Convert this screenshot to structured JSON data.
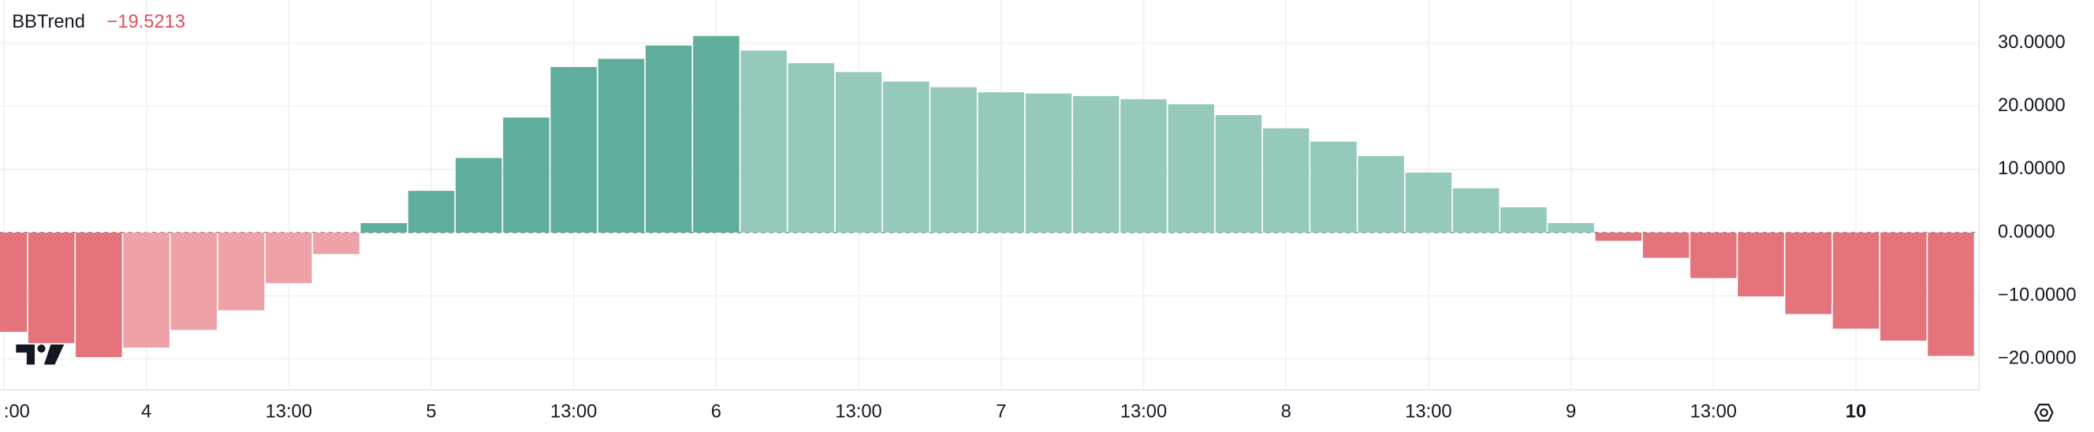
{
  "chart_data": {
    "type": "bar",
    "series_name": "BBTrend",
    "last_value_label": "−19.5213",
    "last_value_color": "#e0505b",
    "categories": [
      ":00",
      null,
      null,
      "4",
      null,
      null,
      "13:00",
      null,
      null,
      "5",
      null,
      null,
      "13:00",
      null,
      null,
      "6",
      null,
      null,
      "13:00",
      null,
      null,
      "7",
      null,
      null,
      "13:00",
      null,
      null,
      "8",
      null,
      null,
      "13:00",
      null,
      null,
      "9",
      null,
      null,
      "13:00",
      null,
      null,
      "10",
      null,
      null
    ],
    "emphasized_category": 39,
    "values": [
      -15.7,
      -17.5,
      -19.7,
      -18.2,
      -15.4,
      -12.3,
      -8.0,
      -3.4,
      1.5,
      6.6,
      11.8,
      18.2,
      26.2,
      27.5,
      29.6,
      31.1,
      28.8,
      26.8,
      25.4,
      23.9,
      23.0,
      22.2,
      22.0,
      21.6,
      21.1,
      20.3,
      18.6,
      16.5,
      14.4,
      12.1,
      9.5,
      7.0,
      4.0,
      1.5,
      -1.3,
      -4.0,
      -7.2,
      -10.1,
      -12.9,
      -15.2,
      -17.1,
      -19.5213
    ],
    "colors": [
      "#e5737b",
      "#e5737b",
      "#e5737b",
      "#eea2a7",
      "#eea2a7",
      "#eea2a7",
      "#eea2a7",
      "#eea2a7",
      "#5eae9b",
      "#5eae9b",
      "#5eae9b",
      "#5eae9b",
      "#5eae9b",
      "#5eae9b",
      "#5eae9b",
      "#5eae9b",
      "#94c9bc",
      "#94c9bc",
      "#94c9bc",
      "#94c9bc",
      "#94c9bc",
      "#94c9bc",
      "#94c9bc",
      "#94c9bc",
      "#94c9bc",
      "#94c9bc",
      "#94c9bc",
      "#94c9bc",
      "#94c9bc",
      "#94c9bc",
      "#94c9bc",
      "#94c9bc",
      "#94c9bc",
      "#94c9bc",
      "#e5737b",
      "#e5737b",
      "#e5737b",
      "#e5737b",
      "#e5737b",
      "#e5737b",
      "#e5737b",
      "#e5737b"
    ],
    "ylim": [
      -24.9,
      36.8
    ],
    "yticks": [
      {
        "value": 30,
        "label": "30.0000"
      },
      {
        "value": 20,
        "label": "20.0000"
      },
      {
        "value": 10,
        "label": "10.0000"
      },
      {
        "value": 0,
        "label": "0.0000"
      },
      {
        "value": -10,
        "label": "−10.0000"
      },
      {
        "value": -20,
        "label": "−20.0000"
      }
    ],
    "grid": true
  }
}
